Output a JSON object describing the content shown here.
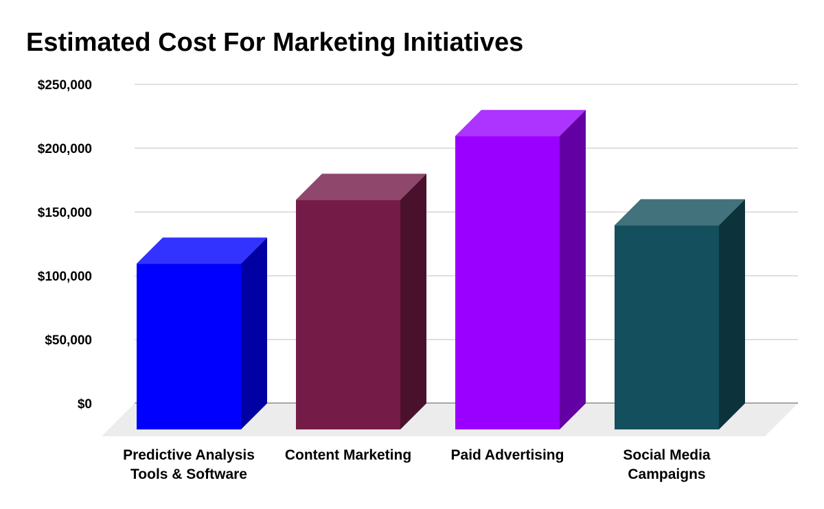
{
  "chart_data": {
    "type": "bar",
    "title": "Estimated Cost For Marketing Initiatives",
    "categories": [
      [
        "Predictive Analysis",
        "Tools & Software"
      ],
      [
        "Content Marketing"
      ],
      [
        "Paid Advertising"
      ],
      [
        "Social Media",
        "Campaigns"
      ]
    ],
    "values": [
      130000,
      180000,
      230000,
      160000
    ],
    "yticks": [
      "$0",
      "$50,000",
      "$100,000",
      "$150,000",
      "$200,000",
      "$250,000"
    ],
    "ylim": [
      0,
      250000
    ],
    "grid": true,
    "style": "3d-column",
    "colors": [
      {
        "front": "#0000ff",
        "top": "#3333ff",
        "side": "#0000a3"
      },
      {
        "front": "#741b47",
        "top": "#8f486c",
        "side": "#4a112d"
      },
      {
        "front": "#9900ff",
        "top": "#ad33ff",
        "side": "#6200a3"
      },
      {
        "front": "#134f5c",
        "top": "#42727c",
        "side": "#0c323b"
      }
    ],
    "gridline_color": "#cccccc",
    "floor_color": "#ececec"
  }
}
